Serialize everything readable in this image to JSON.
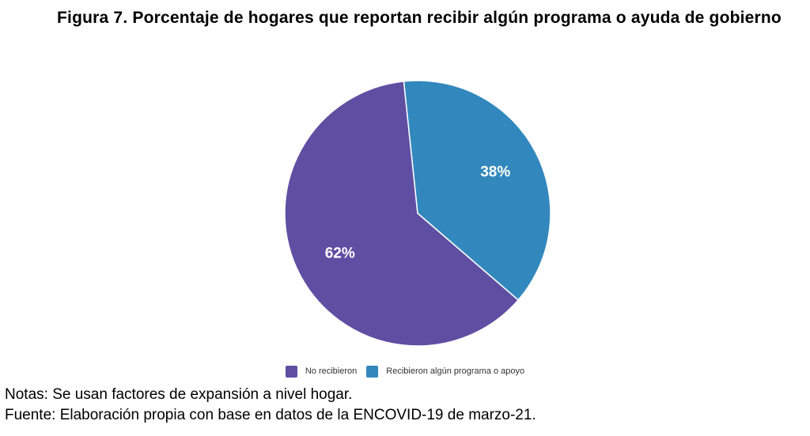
{
  "chart_data": {
    "type": "pie",
    "title": "Figura 7. Porcentaje de hogares que reportan recibir algún programa o ayuda de gobierno",
    "slices": [
      {
        "label": "No recibieron",
        "value": 62,
        "display": "62%",
        "color": "#5e4fa2"
      },
      {
        "label": "Recibieron algún programa o apoyo",
        "value": 38,
        "display": "38%",
        "color": "#3288bd"
      }
    ],
    "legend_position": "bottom"
  },
  "footer": {
    "notes": "Notas: Se usan factores de expansión a nivel hogar.",
    "source": "Fuente: Elaboración propia con base en datos de la ENCOVID-19 de marzo-21."
  }
}
